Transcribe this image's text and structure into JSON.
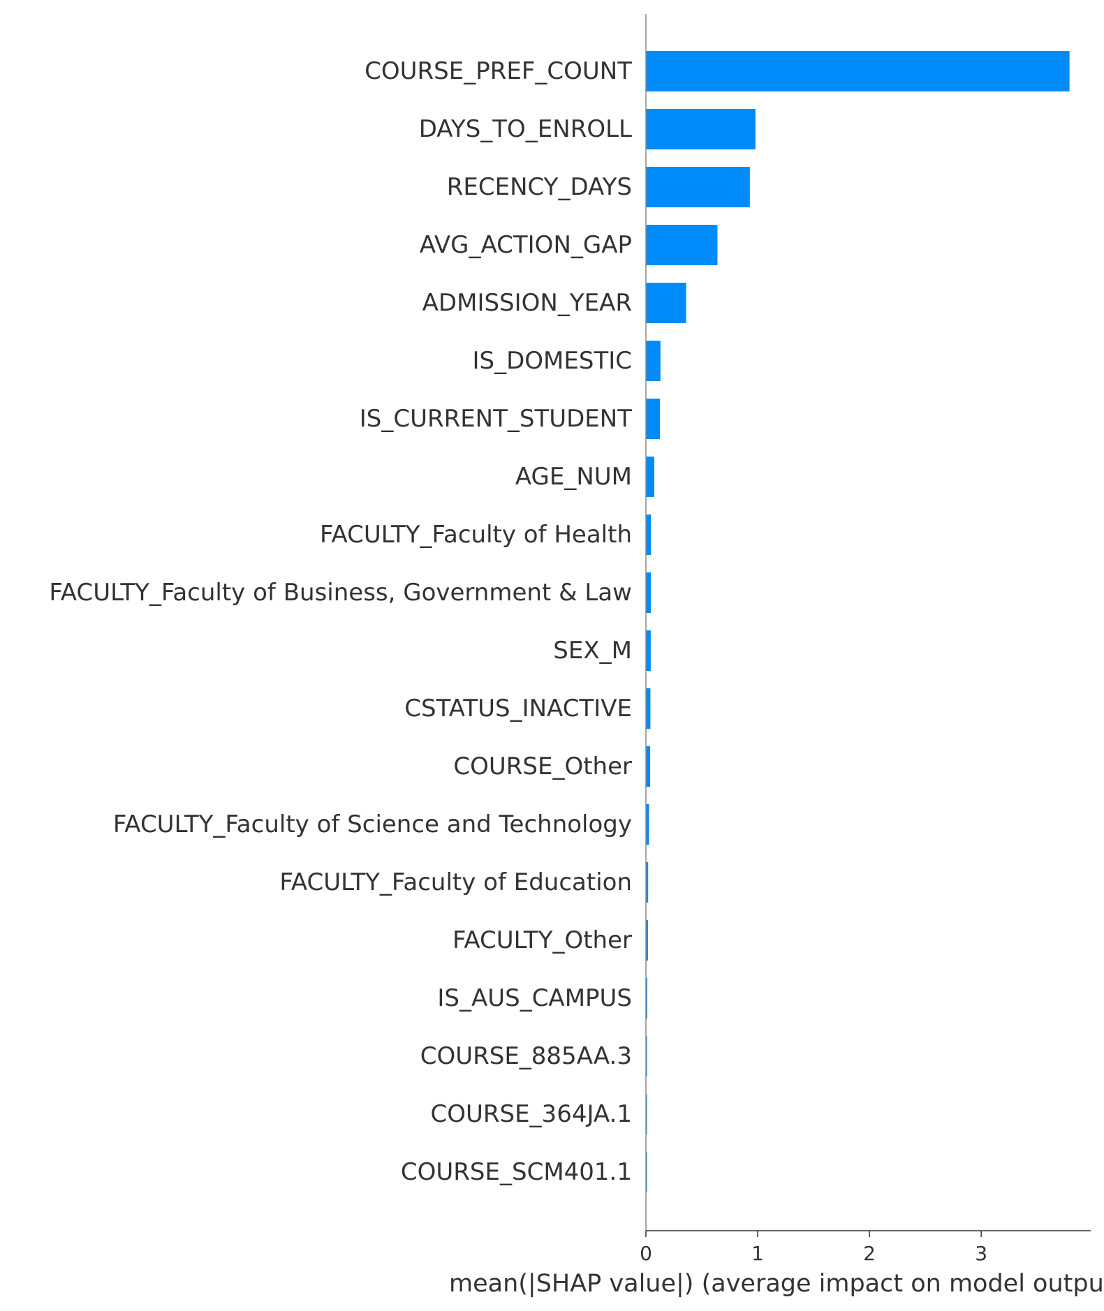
{
  "chart_data": {
    "type": "bar",
    "orientation": "horizontal",
    "categories": [
      "COURSE_PREF_COUNT",
      "DAYS_TO_ENROLL",
      "RECENCY_DAYS",
      "AVG_ACTION_GAP",
      "ADMISSION_YEAR",
      "IS_DOMESTIC",
      "IS_CURRENT_STUDENT",
      "AGE_NUM",
      "FACULTY_Faculty of Health",
      "FACULTY_Faculty of Business, Government & Law",
      "SEX_M",
      "CSTATUS_INACTIVE",
      "COURSE_Other",
      "FACULTY_Faculty of Science and Technology",
      "FACULTY_Faculty of Education",
      "FACULTY_Other",
      "IS_AUS_CAMPUS",
      "COURSE_885AA.3",
      "COURSE_364JA.1",
      "COURSE_SCM401.1"
    ],
    "values": [
      3.79,
      0.98,
      0.93,
      0.64,
      0.36,
      0.13,
      0.125,
      0.075,
      0.045,
      0.044,
      0.043,
      0.04,
      0.038,
      0.028,
      0.02,
      0.019,
      0.012,
      0.01,
      0.009,
      0.008
    ],
    "xlabel": "mean(|SHAP value|) (average impact on model output magnitude)",
    "xticks": [
      0,
      1,
      2,
      3
    ],
    "xlim": [
      0,
      3.98
    ],
    "bar_color": "#008bfb",
    "text_color": "#333333",
    "grid": false
  }
}
